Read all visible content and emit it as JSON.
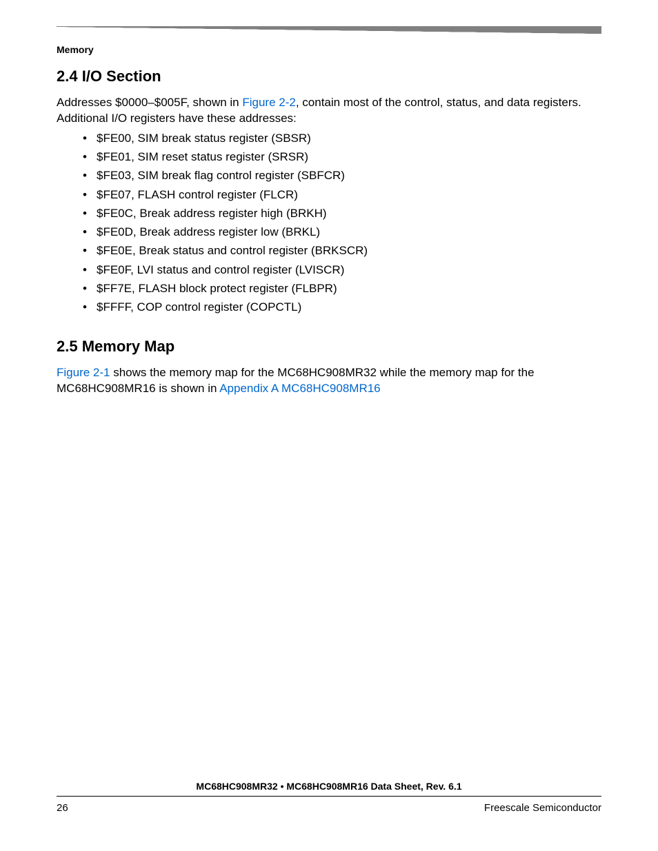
{
  "chapter_label": "Memory",
  "section24": {
    "heading": "2.4  I/O Section",
    "para_pre": "Addresses $0000–$005F, shown in ",
    "para_link": "Figure 2-2",
    "para_post": ", contain most of the control, status, and data registers. Additional I/O registers have these addresses:",
    "items": [
      "$FE00, SIM break status register (SBSR)",
      "$FE01, SIM reset status register (SRSR)",
      "$FE03, SIM break flag control register (SBFCR)",
      "$FE07, FLASH control register (FLCR)",
      "$FE0C, Break address register high (BRKH)",
      "$FE0D, Break address register low (BRKL)",
      "$FE0E, Break status and control register (BRKSCR)",
      "$FE0F, LVI status and control register (LVISCR)",
      "$FF7E, FLASH block protect register (FLBPR)",
      "$FFFF, COP control register (COPCTL)"
    ]
  },
  "section25": {
    "heading": "2.5  Memory Map",
    "link1": "Figure 2-1",
    "mid": " shows the memory map for the MC68HC908MR32 while the memory map for the MC68HC908MR16 is shown in ",
    "link2": "Appendix A MC68HC908MR16"
  },
  "footer": {
    "title": "MC68HC908MR32 • MC68HC908MR16 Data Sheet, Rev. 6.1",
    "page_number": "26",
    "company": "Freescale Semiconductor"
  },
  "colors": {
    "link": "#0066cc",
    "rule_gray": "#808080",
    "text": "#000000",
    "background": "#ffffff"
  }
}
